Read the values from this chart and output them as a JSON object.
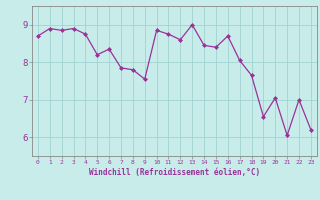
{
  "x": [
    0,
    1,
    2,
    3,
    4,
    5,
    6,
    7,
    8,
    9,
    10,
    11,
    12,
    13,
    14,
    15,
    16,
    17,
    18,
    19,
    20,
    21,
    22,
    23
  ],
  "y": [
    8.7,
    8.9,
    8.85,
    8.9,
    8.75,
    8.2,
    8.35,
    7.85,
    7.8,
    7.55,
    8.85,
    8.75,
    8.6,
    9.0,
    8.45,
    8.4,
    8.7,
    8.05,
    7.65,
    6.55,
    7.05,
    6.05,
    7.0,
    6.2
  ],
  "line_color": "#993399",
  "marker_color": "#993399",
  "bg_color": "#c8ecea",
  "grid_color": "#a0d4d0",
  "xlabel": "Windchill (Refroidissement éolien,°C)",
  "xlabel_color": "#993399",
  "tick_color": "#993399",
  "axis_color": "#888888",
  "ylim": [
    5.5,
    9.5
  ],
  "yticks": [
    6,
    7,
    8,
    9
  ],
  "xlim": [
    -0.5,
    23.5
  ],
  "figsize": [
    3.2,
    2.0
  ],
  "dpi": 100
}
